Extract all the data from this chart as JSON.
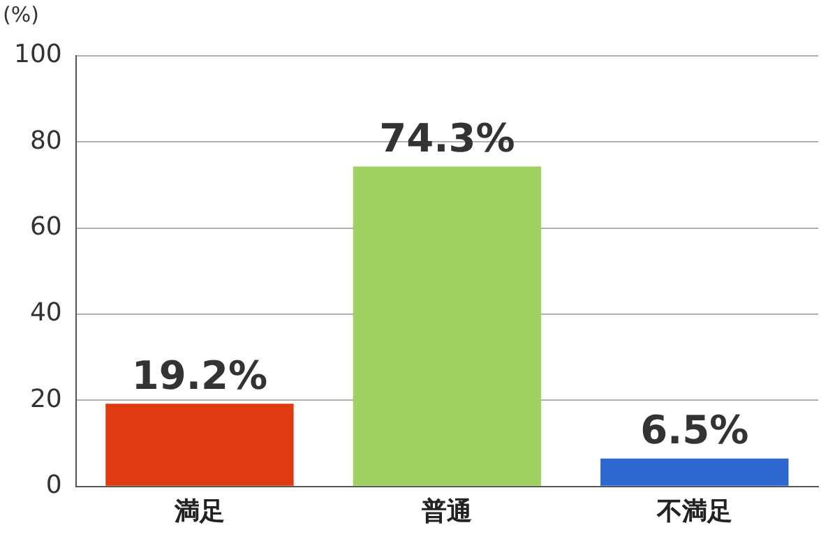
{
  "chart_data": {
    "type": "bar",
    "ylabel": "(%)",
    "categories": [
      "満足",
      "普通",
      "不満足"
    ],
    "values": [
      19.2,
      74.3,
      6.5
    ],
    "colors": [
      "#e03a12",
      "#9fd162",
      "#2d67cf"
    ],
    "value_labels": [
      "19.2%",
      "74.3%",
      "6.5%"
    ],
    "ylim": [
      0,
      100
    ],
    "yticks": [
      0,
      20,
      40,
      60,
      80,
      100
    ],
    "grid": "y",
    "legend": false
  }
}
